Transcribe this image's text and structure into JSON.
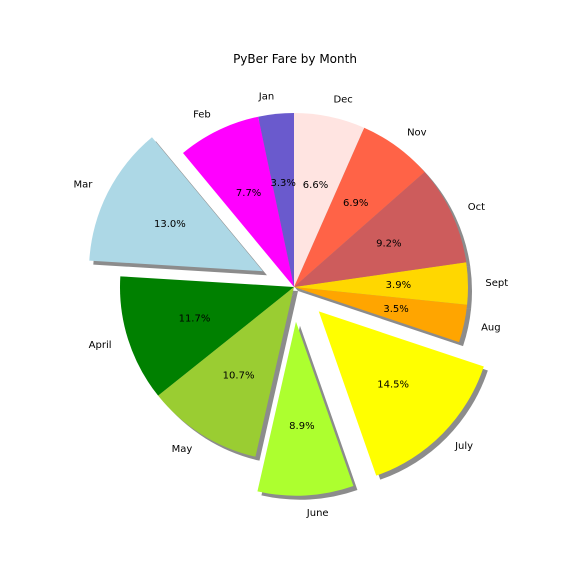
{
  "chart_data": {
    "type": "pie",
    "title": "PyBer Fare by Month",
    "start_angle_deg": 90,
    "direction": "counterclockwise",
    "shadow": true,
    "slices": [
      {
        "label": "Jan",
        "value": 3.3,
        "pct_label": "3.3%",
        "color": "#6A5ACD",
        "exploded": false
      },
      {
        "label": "Feb",
        "value": 7.7,
        "pct_label": "7.7%",
        "color": "#FF00FF",
        "exploded": false
      },
      {
        "label": "Mar",
        "value": 13.0,
        "pct_label": "13.0%",
        "color": "#ADD8E6",
        "exploded": true
      },
      {
        "label": "April",
        "value": 11.7,
        "pct_label": "11.7%",
        "color": "#008000",
        "exploded": false
      },
      {
        "label": "May",
        "value": 10.7,
        "pct_label": "10.7%",
        "color": "#9ACD32",
        "exploded": false
      },
      {
        "label": "June",
        "value": 8.9,
        "pct_label": "8.9%",
        "color": "#ADFF2F",
        "exploded": true
      },
      {
        "label": "July",
        "value": 14.5,
        "pct_label": "14.5%",
        "color": "#FFFF00",
        "exploded": true
      },
      {
        "label": "Aug",
        "value": 3.5,
        "pct_label": "3.5%",
        "color": "#FFA500",
        "exploded": false
      },
      {
        "label": "Sept",
        "value": 3.9,
        "pct_label": "3.9%",
        "color": "#FFD700",
        "exploded": false
      },
      {
        "label": "Oct",
        "value": 9.2,
        "pct_label": "9.2%",
        "color": "#CD5C5C",
        "exploded": false
      },
      {
        "label": "Nov",
        "value": 6.9,
        "pct_label": "6.9%",
        "color": "#FF6347",
        "exploded": false
      },
      {
        "label": "Dec",
        "value": 6.6,
        "pct_label": "6.6%",
        "color": "#FFE4E1",
        "exploded": false
      }
    ]
  }
}
